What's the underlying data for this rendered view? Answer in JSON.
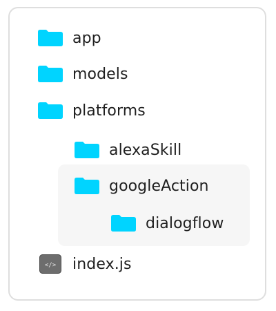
{
  "colors": {
    "folder": "#00d4ff",
    "panel_border": "#dedede",
    "highlight_bg": "#f6f6f6",
    "file_icon_bg": "#6d6d6d",
    "text": "#1f1f1f"
  },
  "tree": {
    "items": [
      {
        "label": "app",
        "icon": "folder-icon"
      },
      {
        "label": "models",
        "icon": "folder-icon"
      },
      {
        "label": "platforms",
        "icon": "folder-icon"
      },
      {
        "label": "alexaSkill",
        "icon": "folder-icon"
      },
      {
        "label": "googleAction",
        "icon": "folder-icon"
      },
      {
        "label": "dialogflow",
        "icon": "folder-icon"
      },
      {
        "label": "index.js",
        "icon": "code-file-icon",
        "icon_text": "</>"
      }
    ]
  }
}
